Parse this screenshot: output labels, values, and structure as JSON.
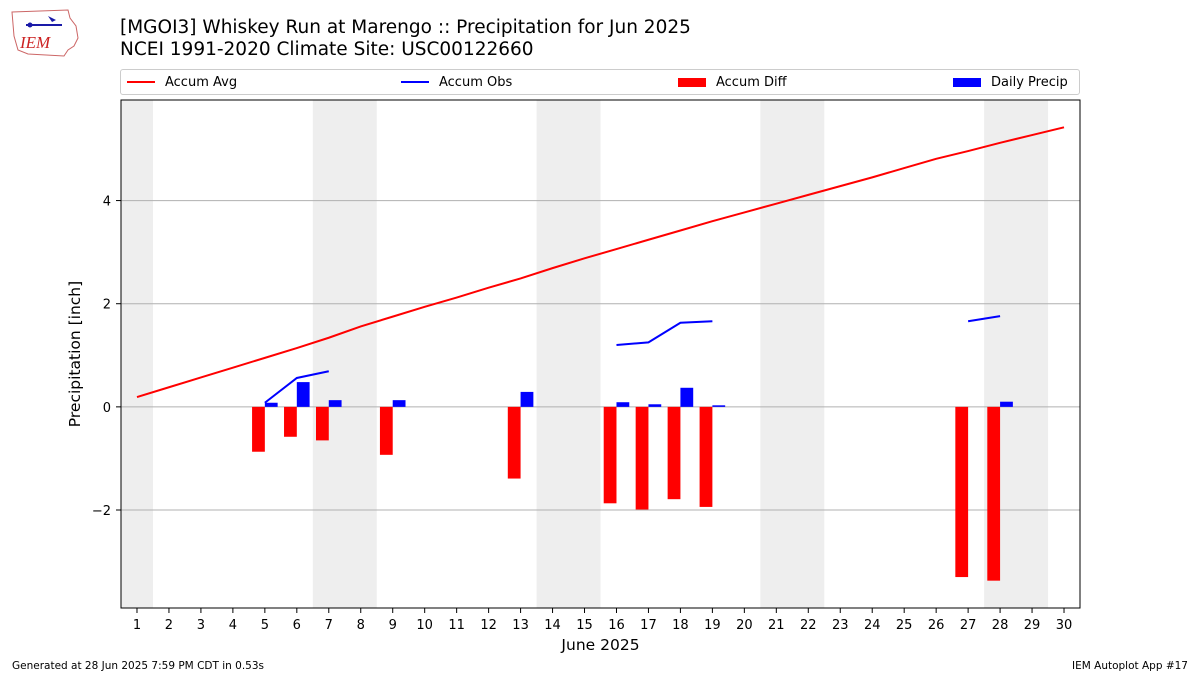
{
  "header": {
    "title_line1": "[MGOI3] Whiskey Run at Marengo :: Precipitation for Jun 2025",
    "title_line2": "NCEI 1991-2020 Climate Site: USC00122660",
    "logo_text": "IEM"
  },
  "legend": {
    "items": [
      {
        "label": "Accum Avg",
        "color": "#ff0000",
        "kind": "line"
      },
      {
        "label": "Accum Obs",
        "color": "#0000ff",
        "kind": "line"
      },
      {
        "label": "Accum Diff",
        "color": "#ff0000",
        "kind": "box"
      },
      {
        "label": "Daily Precip",
        "color": "#0000ff",
        "kind": "box"
      }
    ]
  },
  "footer": {
    "left": "Generated at 28 Jun 2025 7:59 PM CDT in 0.53s",
    "right": "IEM Autoplot App #17"
  },
  "chart_data": {
    "type": "bar",
    "title": "[MGOI3] Whiskey Run at Marengo :: Precipitation for Jun 2025",
    "xlabel": "June 2025",
    "ylabel": "Precipitation [inch]",
    "xlim": [
      0.5,
      30.5
    ],
    "ylim": [
      -3.9,
      5.95
    ],
    "x": [
      1,
      2,
      3,
      4,
      5,
      6,
      7,
      8,
      9,
      10,
      11,
      12,
      13,
      14,
      15,
      16,
      17,
      18,
      19,
      20,
      21,
      22,
      23,
      24,
      25,
      26,
      27,
      28,
      29,
      30
    ],
    "yticks": [
      -2,
      0,
      2,
      4
    ],
    "ytick_labels": [
      "−2",
      "0",
      "2",
      "4"
    ],
    "grid": "horizontal",
    "weekend_shading": [
      [
        0.5,
        1.5
      ],
      [
        6.5,
        8.5
      ],
      [
        13.5,
        15.5
      ],
      [
        20.5,
        22.5
      ],
      [
        27.5,
        29.5
      ]
    ],
    "series": [
      {
        "name": "Accum Avg",
        "type": "line",
        "color": "#ff0000",
        "x": [
          1,
          2,
          3,
          4,
          5,
          6,
          7,
          8,
          9,
          10,
          11,
          12,
          13,
          14,
          15,
          16,
          17,
          18,
          19,
          20,
          21,
          22,
          23,
          24,
          25,
          26,
          27,
          28,
          29,
          30
        ],
        "values": [
          0.19,
          0.38,
          0.57,
          0.76,
          0.95,
          1.14,
          1.34,
          1.56,
          1.75,
          1.94,
          2.12,
          2.31,
          2.49,
          2.69,
          2.88,
          3.06,
          3.24,
          3.42,
          3.6,
          3.77,
          3.94,
          4.11,
          4.28,
          4.45,
          4.63,
          4.81,
          4.96,
          5.12,
          5.27,
          5.42
        ]
      },
      {
        "name": "Accum Obs",
        "type": "line",
        "color": "#0000ff",
        "segments": [
          {
            "x": [
              5,
              6,
              7
            ],
            "values": [
              0.08,
              0.56,
              0.69
            ]
          },
          {
            "x": [
              16,
              17,
              18,
              19
            ],
            "values": [
              1.2,
              1.25,
              1.63,
              1.66
            ]
          },
          {
            "x": [
              27,
              28
            ],
            "values": [
              1.66,
              1.76
            ]
          }
        ]
      },
      {
        "name": "Accum Diff",
        "type": "bar",
        "color": "#ff0000",
        "x": [
          5,
          6,
          7,
          9,
          13,
          16,
          17,
          18,
          19,
          27,
          28
        ],
        "values": [
          -0.87,
          -0.58,
          -0.65,
          -0.93,
          -1.39,
          -1.87,
          -1.99,
          -1.79,
          -1.94,
          -3.3,
          -3.37
        ]
      },
      {
        "name": "Daily Precip",
        "type": "bar",
        "color": "#0000ff",
        "x": [
          5,
          6,
          7,
          9,
          13,
          16,
          17,
          18,
          19,
          28
        ],
        "values": [
          0.08,
          0.48,
          0.13,
          0.13,
          0.29,
          0.09,
          0.05,
          0.37,
          0.03,
          0.1
        ]
      }
    ]
  }
}
